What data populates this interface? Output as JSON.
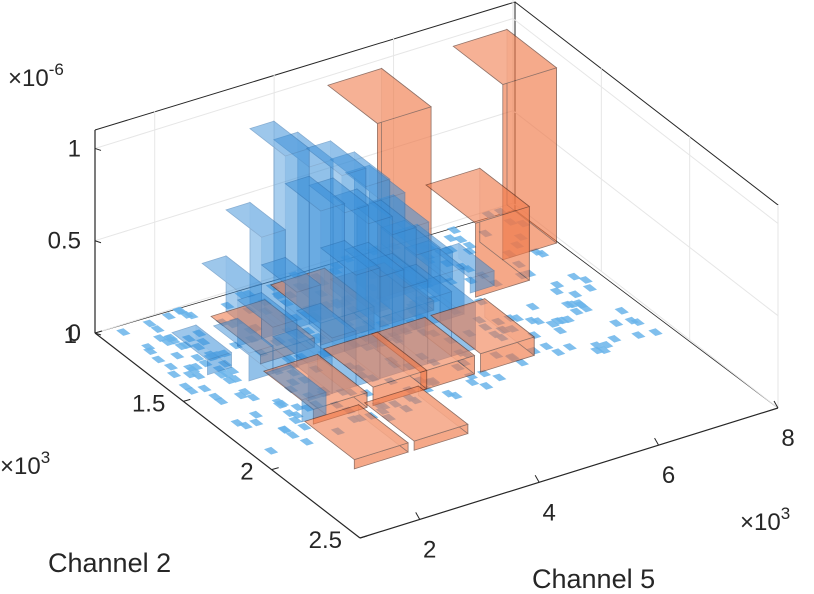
{
  "chart_data": {
    "type": "histogram3d",
    "xlabel": "Channel 5",
    "ylabel": "Channel 2",
    "zlabel": "",
    "x_multiplier": "×10",
    "x_exponent": "3",
    "y_multiplier": "×10",
    "y_exponent": "3",
    "z_multiplier": "×10",
    "z_exponent": "-6",
    "x_ticks": [
      {
        "value": 2,
        "label": "2"
      },
      {
        "value": 4,
        "label": "4"
      },
      {
        "value": 6,
        "label": "6"
      },
      {
        "value": 8,
        "label": "8"
      }
    ],
    "y_ticks": [
      {
        "value": 1,
        "label": "1"
      },
      {
        "value": 1.5,
        "label": "1.5"
      },
      {
        "value": 2,
        "label": "2"
      },
      {
        "value": 2.5,
        "label": "2.5"
      }
    ],
    "z_ticks": [
      {
        "value": 0,
        "label": "0"
      },
      {
        "value": 0.5,
        "label": "0.5"
      },
      {
        "value": 1,
        "label": "1"
      }
    ],
    "xlim": [
      1,
      8
    ],
    "ylim": [
      1,
      2.5
    ],
    "zlim": [
      0,
      1.1
    ],
    "grid": true,
    "colors": {
      "fine": "#3a8fd8",
      "fine_floor": "#6ab4ea",
      "coarse": "#f07a4a",
      "coarse_edge": "#5a2a1a",
      "axis": "#262626",
      "grid": "#e6e6e6"
    },
    "series": [
      {
        "style": "fine",
        "bins": [
          {
            "x": 3.3,
            "y": 1.1,
            "z": 0.95
          },
          {
            "x": 3.7,
            "y": 1.1,
            "z": 0.85
          },
          {
            "x": 4.1,
            "y": 1.15,
            "z": 0.8
          },
          {
            "x": 4.5,
            "y": 1.15,
            "z": 0.7
          },
          {
            "x": 4.9,
            "y": 1.1,
            "z": 0.55
          },
          {
            "x": 5.3,
            "y": 1.1,
            "z": 0.35
          },
          {
            "x": 3.3,
            "y": 1.3,
            "z": 0.8
          },
          {
            "x": 3.7,
            "y": 1.3,
            "z": 0.75
          },
          {
            "x": 4.1,
            "y": 1.3,
            "z": 0.65
          },
          {
            "x": 4.5,
            "y": 1.3,
            "z": 0.55
          },
          {
            "x": 4.9,
            "y": 1.3,
            "z": 0.4
          },
          {
            "x": 5.3,
            "y": 1.3,
            "z": 0.25
          },
          {
            "x": 3.3,
            "y": 1.5,
            "z": 0.6
          },
          {
            "x": 3.7,
            "y": 1.5,
            "z": 0.55
          },
          {
            "x": 4.1,
            "y": 1.5,
            "z": 0.45
          },
          {
            "x": 4.5,
            "y": 1.5,
            "z": 0.35
          },
          {
            "x": 4.9,
            "y": 1.5,
            "z": 0.25
          },
          {
            "x": 2.5,
            "y": 1.1,
            "z": 0.3
          },
          {
            "x": 2.9,
            "y": 1.1,
            "z": 0.55
          },
          {
            "x": 2.5,
            "y": 1.3,
            "z": 0.25
          },
          {
            "x": 2.9,
            "y": 1.3,
            "z": 0.4
          },
          {
            "x": 2.1,
            "y": 1.3,
            "z": 0.15
          },
          {
            "x": 2.5,
            "y": 1.5,
            "z": 0.2
          },
          {
            "x": 2.9,
            "y": 1.5,
            "z": 0.3
          },
          {
            "x": 1.7,
            "y": 1.2,
            "z": 0.08
          },
          {
            "x": 2.1,
            "y": 1.6,
            "z": 0.12
          },
          {
            "x": 5.7,
            "y": 1.1,
            "z": 0.15
          },
          {
            "x": 6.1,
            "y": 1.2,
            "z": 0.08
          }
        ]
      },
      {
        "style": "coarse",
        "bins": [
          {
            "x": 2.5,
            "y": 1.15,
            "z": 0.05
          },
          {
            "x": 3.5,
            "y": 1.15,
            "z": 0.12
          },
          {
            "x": 4.5,
            "y": 1.15,
            "z": 0.05
          },
          {
            "x": 4.9,
            "y": 1.0,
            "z": 0.95
          },
          {
            "x": 7.0,
            "y": 1.0,
            "z": 0.95
          },
          {
            "x": 6.1,
            "y": 1.15,
            "z": 0.4
          },
          {
            "x": 2.2,
            "y": 1.55,
            "z": 0.08
          },
          {
            "x": 3.2,
            "y": 1.55,
            "z": 0.1
          },
          {
            "x": 4.0,
            "y": 1.55,
            "z": 0.1
          },
          {
            "x": 5.0,
            "y": 1.55,
            "z": 0.1
          },
          {
            "x": 2.0,
            "y": 1.85,
            "z": 0.05
          },
          {
            "x": 3.0,
            "y": 1.85,
            "z": 0.05
          }
        ]
      }
    ]
  }
}
